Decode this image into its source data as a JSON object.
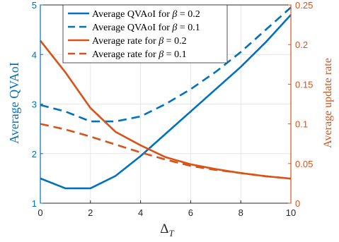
{
  "chart_data": {
    "type": "line",
    "title": "",
    "xlabel": "Δ",
    "xlabel_sub": "T",
    "y_left_label": "Average QVAoI",
    "y_right_label": "Average update rate",
    "xlim": [
      0,
      10
    ],
    "y_left_lim": [
      1,
      5
    ],
    "y_right_lim": [
      0,
      0.25
    ],
    "x_ticks": [
      0,
      2,
      4,
      6,
      8,
      10
    ],
    "y_left_ticks": [
      1,
      2,
      3,
      4,
      5
    ],
    "y_right_ticks": [
      0,
      0.05,
      0.1,
      0.15,
      0.2,
      0.25
    ],
    "x_tick_labels": [
      "0",
      "2",
      "4",
      "6",
      "8",
      "10"
    ],
    "y_left_tick_labels": [
      "1",
      "2",
      "3",
      "4",
      "5"
    ],
    "y_right_tick_labels": [
      "0",
      "0.05",
      "0.1",
      "0.15",
      "0.2",
      "0.25"
    ],
    "grid": true,
    "legend_position": "top-center",
    "colors": {
      "left_axis": "#0072BD",
      "right_axis": "#D95319"
    },
    "series": [
      {
        "name": "Average QVAoI for β = 0.2",
        "legend_prefix": "Average QVAoI for ",
        "legend_suffix": " = 0.2",
        "axis": "left",
        "style": "solid",
        "color": "#0072BD",
        "x": [
          0,
          1,
          2,
          3,
          4,
          5,
          6,
          7,
          8,
          9,
          10
        ],
        "values": [
          1.5,
          1.3,
          1.3,
          1.55,
          1.95,
          2.4,
          2.85,
          3.3,
          3.75,
          4.25,
          4.8
        ]
      },
      {
        "name": "Average QVAoI for β = 0.1",
        "legend_prefix": "Average QVAoI for ",
        "legend_suffix": " = 0.1",
        "axis": "left",
        "style": "dashed",
        "color": "#0072BD",
        "x": [
          0,
          1,
          2,
          3,
          4,
          5,
          6,
          7,
          8,
          9,
          10
        ],
        "values": [
          2.98,
          2.85,
          2.65,
          2.65,
          2.75,
          3.0,
          3.3,
          3.65,
          4.05,
          4.5,
          4.95
        ]
      },
      {
        "name": "Average rate for β = 0.2",
        "legend_prefix": "Average rate for ",
        "legend_suffix": " = 0.2",
        "axis": "right",
        "style": "solid",
        "color": "#D95319",
        "x": [
          0,
          1,
          2,
          3,
          4,
          5,
          6,
          7,
          8,
          9,
          10
        ],
        "values": [
          0.205,
          0.165,
          0.12,
          0.09,
          0.073,
          0.058,
          0.049,
          0.043,
          0.038,
          0.034,
          0.031
        ]
      },
      {
        "name": "Average rate for β = 0.1",
        "legend_prefix": "Average rate for ",
        "legend_suffix": " = 0.1",
        "axis": "right",
        "style": "dashed",
        "color": "#D95319",
        "x": [
          0,
          1,
          2,
          3,
          4,
          5,
          6,
          7,
          8,
          9,
          10
        ],
        "values": [
          0.1,
          0.093,
          0.084,
          0.074,
          0.064,
          0.055,
          0.047,
          0.042,
          0.038,
          0.034,
          0.031
        ]
      }
    ]
  }
}
